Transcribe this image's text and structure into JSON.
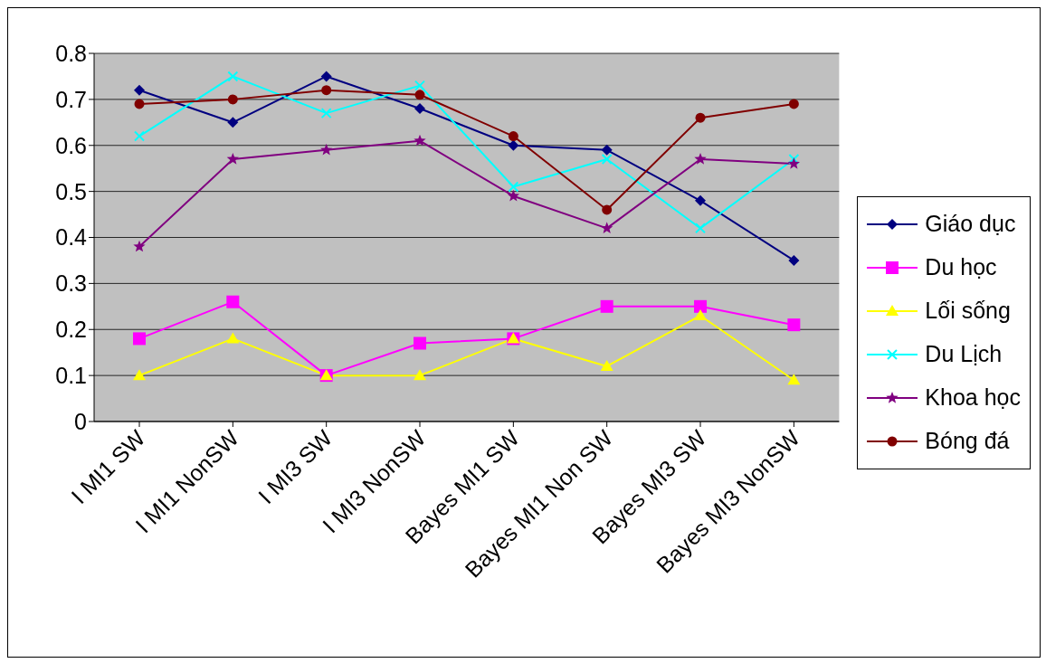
{
  "chart_data": {
    "type": "line",
    "categories": [
      "I MI1 SW",
      "I MI1 NonSW",
      "I MI3 SW",
      "I MI3 NonSW",
      "Bayes MI1 SW",
      "Bayes MI1 Non SW",
      "Bayes MI3 SW",
      "Bayes MI3 NonSW"
    ],
    "series": [
      {
        "name": "Giáo dục",
        "color": "#000080",
        "marker": "diamond",
        "values": [
          0.72,
          0.65,
          0.75,
          0.68,
          0.6,
          0.59,
          0.48,
          0.35
        ]
      },
      {
        "name": "Du học",
        "color": "#ff00ff",
        "marker": "square",
        "values": [
          0.18,
          0.26,
          0.1,
          0.17,
          0.18,
          0.25,
          0.25,
          0.21
        ]
      },
      {
        "name": "Lối sống",
        "color": "#ffff00",
        "marker": "triangle",
        "values": [
          0.1,
          0.18,
          0.1,
          0.1,
          0.18,
          0.12,
          0.23,
          0.09
        ]
      },
      {
        "name": "Du Lịch",
        "color": "#00ffff",
        "marker": "cross",
        "values": [
          0.62,
          0.75,
          0.67,
          0.73,
          0.51,
          0.57,
          0.42,
          0.57
        ]
      },
      {
        "name": "Khoa học",
        "color": "#800080",
        "marker": "star",
        "values": [
          0.38,
          0.57,
          0.59,
          0.61,
          0.49,
          0.42,
          0.57,
          0.56
        ]
      },
      {
        "name": "Bóng đá",
        "color": "#800000",
        "marker": "circle",
        "values": [
          0.69,
          0.7,
          0.72,
          0.71,
          0.62,
          0.46,
          0.66,
          0.69
        ]
      }
    ],
    "ylim": [
      0,
      0.8
    ],
    "yticks": [
      0,
      0.1,
      0.2,
      0.3,
      0.4,
      0.5,
      0.6,
      0.7,
      0.8
    ],
    "grid": "y",
    "legend": "right",
    "line_style": "solid"
  }
}
